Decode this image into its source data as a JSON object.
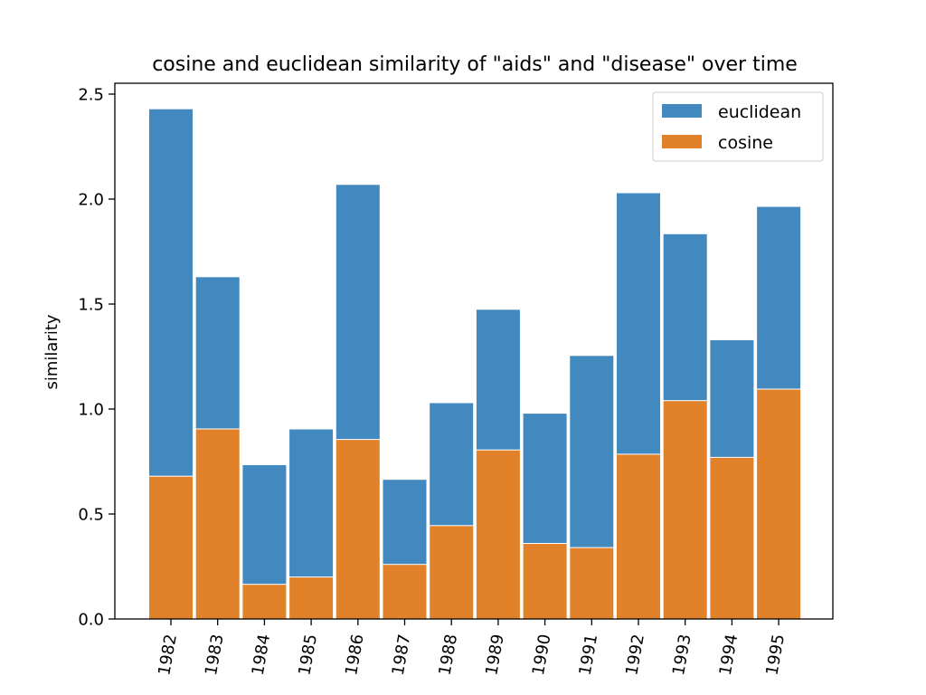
{
  "chart_data": {
    "type": "bar",
    "title": "cosine and euclidean similarity of \"aids\" and \"disease\" over time",
    "xlabel": "",
    "ylabel": "similarity",
    "categories": [
      "1982",
      "1983",
      "1984",
      "1985",
      "1986",
      "1987",
      "1988",
      "1989",
      "1990",
      "1991",
      "1992",
      "1993",
      "1994",
      "1995"
    ],
    "series": [
      {
        "name": "euclidean",
        "color": "#4289c0",
        "values": [
          2.43,
          1.63,
          0.735,
          0.905,
          2.07,
          0.665,
          1.03,
          1.475,
          0.98,
          1.255,
          2.03,
          1.835,
          1.33,
          1.965
        ]
      },
      {
        "name": "cosine",
        "color": "#e1812a",
        "values": [
          0.68,
          0.905,
          0.165,
          0.2,
          0.855,
          0.26,
          0.445,
          0.805,
          0.36,
          0.34,
          0.785,
          1.04,
          0.77,
          1.095
        ]
      }
    ],
    "overlay": true,
    "ylim": [
      0,
      2.55
    ],
    "yticks": [
      "0.0",
      "0.5",
      "1.0",
      "1.5",
      "2.0",
      "2.5"
    ],
    "xtick_rotation": "vertical-ish",
    "grid": false,
    "legend": "top-right"
  }
}
